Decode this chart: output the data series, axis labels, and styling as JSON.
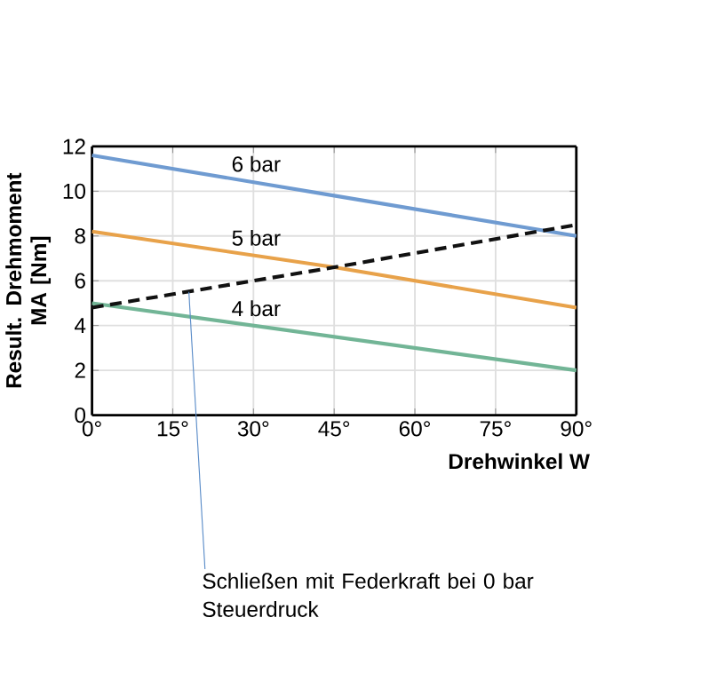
{
  "chart_data": {
    "type": "line",
    "xlabel": "Drehwinkel W",
    "ylabel": "Result. Drehmoment MA [Nm]",
    "x": [
      0,
      45,
      90
    ],
    "series": [
      {
        "name": "6 bar",
        "color": "#6f9bd1",
        "values": [
          11.6,
          9.8,
          8.0
        ]
      },
      {
        "name": "5 bar",
        "color": "#e8a24a",
        "values": [
          8.2,
          6.6,
          4.8
        ]
      },
      {
        "name": "4 bar",
        "color": "#72b596",
        "values": [
          5.0,
          3.5,
          2.0
        ]
      },
      {
        "color": "#111111",
        "values": [
          4.8,
          6.6,
          8.5
        ],
        "line_style": "dashed"
      }
    ],
    "xlim": [
      0,
      90
    ],
    "ylim": [
      0,
      12
    ],
    "xticks": [
      {
        "value": 0,
        "label": "0°"
      },
      {
        "value": 15,
        "label": "15°"
      },
      {
        "value": 30,
        "label": "30°"
      },
      {
        "value": 45,
        "label": "45°"
      },
      {
        "value": 60,
        "label": "60°"
      },
      {
        "value": 75,
        "label": "75°"
      },
      {
        "value": 90,
        "label": "90°"
      }
    ],
    "yticks": [
      0,
      2,
      4,
      6,
      8,
      10,
      12
    ],
    "grid": true,
    "marker": "none",
    "annotations": [
      {
        "text": "Schließen mit Federkraft bei 0 bar Steuerdruck",
        "x": 18,
        "y": 5.5
      }
    ]
  }
}
